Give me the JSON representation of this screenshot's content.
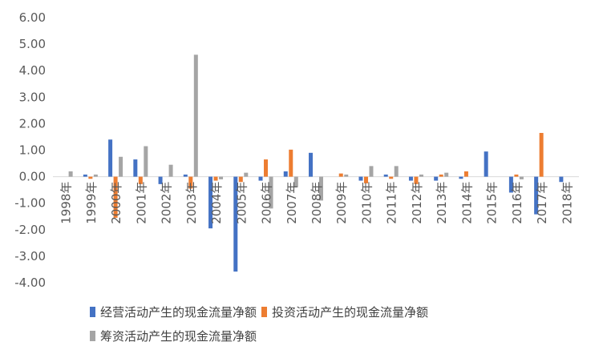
{
  "chart_data": {
    "type": "bar",
    "categories": [
      "1998年",
      "1999年",
      "2000年",
      "2001年",
      "2002年",
      "2003年",
      "2004年",
      "2005年",
      "2006年",
      "2007年",
      "2008年",
      "2009年",
      "2010年",
      "2011年",
      "2012年",
      "2013年",
      "2014年",
      "2015年",
      "2016年",
      "2017年",
      "2018年"
    ],
    "series": [
      {
        "name": "经营活动产生的现金流量净额",
        "color": "#4472C4",
        "values": [
          0.0,
          0.08,
          1.4,
          0.65,
          -0.28,
          0.08,
          -1.95,
          -3.58,
          -0.15,
          0.2,
          0.9,
          0.0,
          -0.15,
          0.08,
          -0.15,
          -0.15,
          -0.08,
          0.95,
          -0.6,
          -1.42,
          -0.2
        ]
      },
      {
        "name": "投资活动产生的现金流量净额",
        "color": "#ED7D31",
        "values": [
          0.0,
          -0.08,
          -1.55,
          -0.28,
          0.0,
          -0.45,
          -0.15,
          -0.2,
          0.65,
          1.02,
          0.0,
          0.12,
          -0.25,
          -0.08,
          -0.28,
          0.08,
          0.2,
          0.0,
          0.08,
          1.65,
          0.0
        ]
      },
      {
        "name": "筹资活动产生的现金流量净额",
        "color": "#A5A5A5",
        "values": [
          0.2,
          0.08,
          0.75,
          1.15,
          0.45,
          4.6,
          -0.1,
          0.15,
          -1.2,
          -0.4,
          -0.9,
          0.08,
          0.4,
          0.4,
          0.08,
          0.15,
          0.0,
          0.0,
          -0.1,
          0.0,
          0.0
        ]
      }
    ],
    "yticks": [
      "6.00",
      "5.00",
      "4.00",
      "3.00",
      "2.00",
      "1.00",
      "0.00",
      "-1.00",
      "-2.00",
      "-3.00",
      "-4.00"
    ],
    "ylim": [
      -4,
      6
    ],
    "title": "",
    "xlabel": "",
    "ylabel": "",
    "legend_position": "bottom",
    "grid": false
  }
}
